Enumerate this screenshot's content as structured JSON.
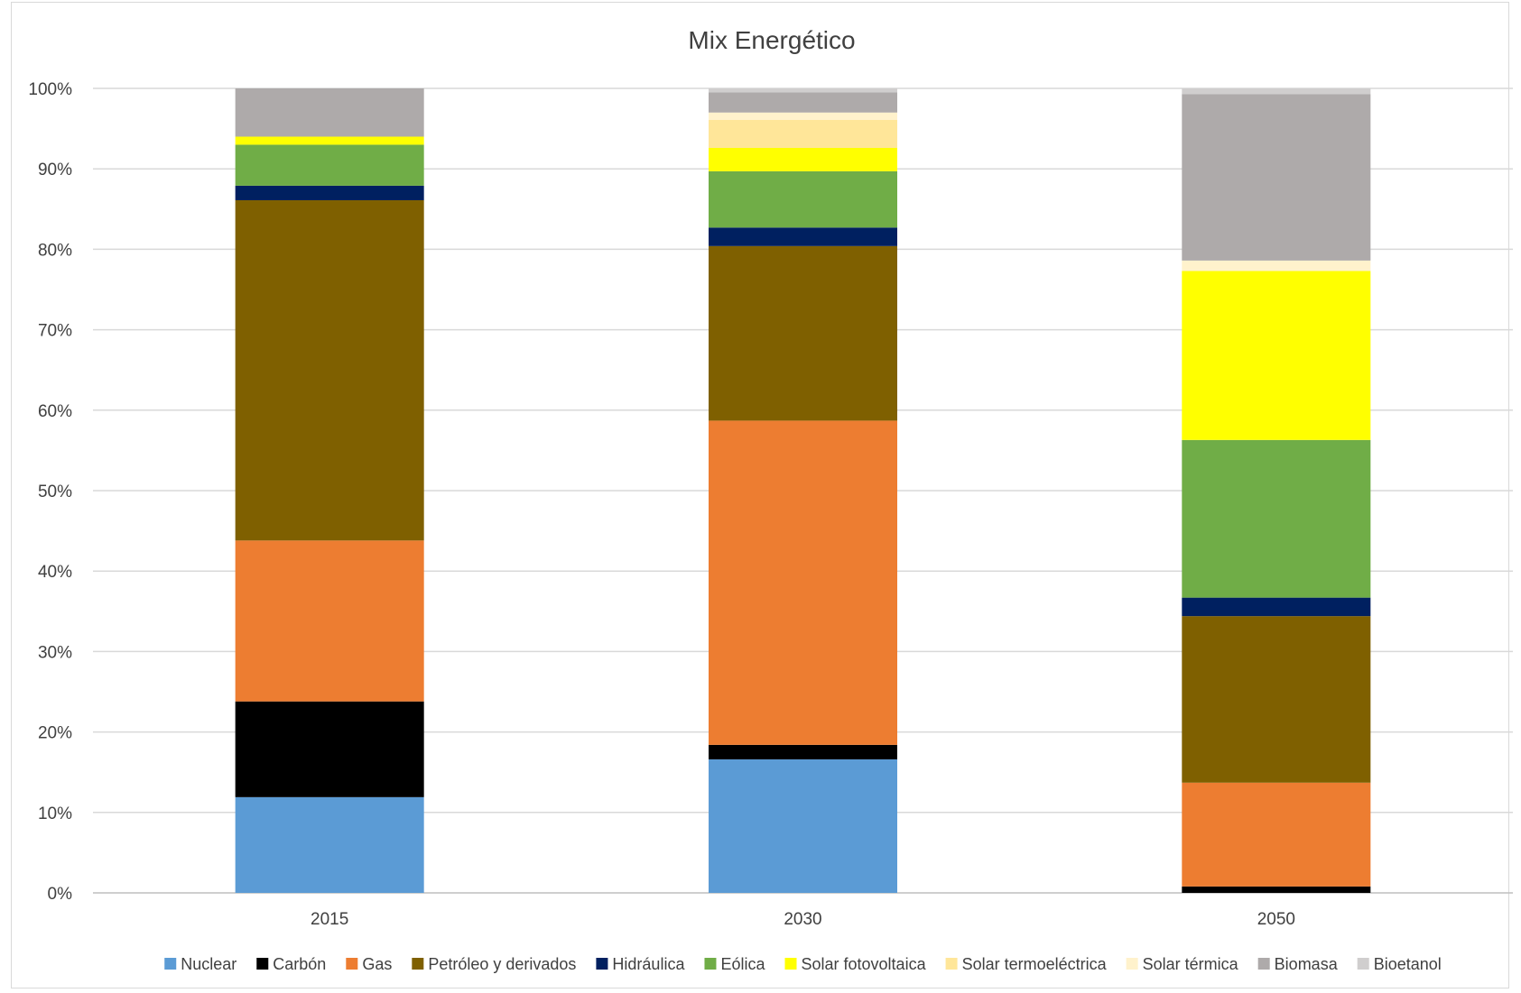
{
  "chart_data": {
    "type": "bar",
    "stacked": true,
    "title": "Mix Energético",
    "xlabel": "",
    "ylabel": "",
    "ylim": [
      0,
      100
    ],
    "yticks": [
      "0%",
      "10%",
      "20%",
      "30%",
      "40%",
      "50%",
      "60%",
      "70%",
      "80%",
      "90%",
      "100%"
    ],
    "grid": true,
    "legend_position": "bottom",
    "categories": [
      "2015",
      "2030",
      "2050"
    ],
    "series": [
      {
        "name": "Nuclear",
        "color": "#5b9bd5",
        "values": [
          11.9,
          16.6,
          0
        ]
      },
      {
        "name": "Carbón",
        "color": "#000000",
        "values": [
          11.9,
          1.8,
          0.8
        ]
      },
      {
        "name": "Gas",
        "color": "#ed7d31",
        "values": [
          20.0,
          40.3,
          12.9
        ]
      },
      {
        "name": "Petróleo y derivados",
        "color": "#7f6000",
        "values": [
          42.3,
          21.7,
          20.7
        ]
      },
      {
        "name": "Hidráulica",
        "color": "#002060",
        "values": [
          1.8,
          2.3,
          2.3
        ]
      },
      {
        "name": "Eólica",
        "color": "#70ad47",
        "values": [
          5.1,
          7.0,
          19.6
        ]
      },
      {
        "name": "Solar fotovoltaica",
        "color": "#ffff00",
        "values": [
          1.0,
          2.9,
          21.0
        ]
      },
      {
        "name": "Solar termoeléctrica",
        "color": "#ffe699",
        "values": [
          0,
          3.5,
          0
        ]
      },
      {
        "name": "Solar térmica",
        "color": "#fff2cc",
        "values": [
          0,
          0.9,
          1.3
        ]
      },
      {
        "name": "Biomasa",
        "color": "#aeaaaa",
        "values": [
          6.0,
          2.5,
          20.7
        ]
      },
      {
        "name": "Bioetanol",
        "color": "#d0cece",
        "values": [
          0,
          0.5,
          0.7
        ]
      }
    ]
  }
}
